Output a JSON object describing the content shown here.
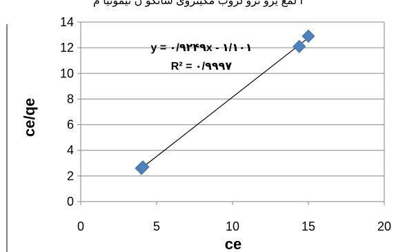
{
  "header": {
    "title_fragment": "ا لمع   یزو نرو لزوب مکیتروی شانکو ن تیمونیا م"
  },
  "chart_data": {
    "type": "scatter",
    "x": [
      4.0,
      4.1,
      14.4,
      15.0
    ],
    "y": [
      2.6,
      2.7,
      12.1,
      12.9
    ],
    "trendline": {
      "type": "linear",
      "x": [
        4.0,
        15.0
      ],
      "slope": 0.9249,
      "intercept": -1.101
    },
    "equation_text": "y = ۰/۹۲۴۹x - ۱/۱۰۱",
    "r2_text": "R² = ۰/۹۹۹۷",
    "xlabel": "ce",
    "ylabel": "ce/qe",
    "xlim": [
      0,
      20
    ],
    "ylim": [
      0,
      14
    ],
    "xticks": [
      0,
      5,
      10,
      15,
      20
    ],
    "yticks": [
      0,
      2,
      4,
      6,
      8,
      10,
      12,
      14
    ],
    "grid": "horizontal",
    "legend": "none",
    "marker_color": "#4F81BD",
    "line_color": "#000000"
  }
}
